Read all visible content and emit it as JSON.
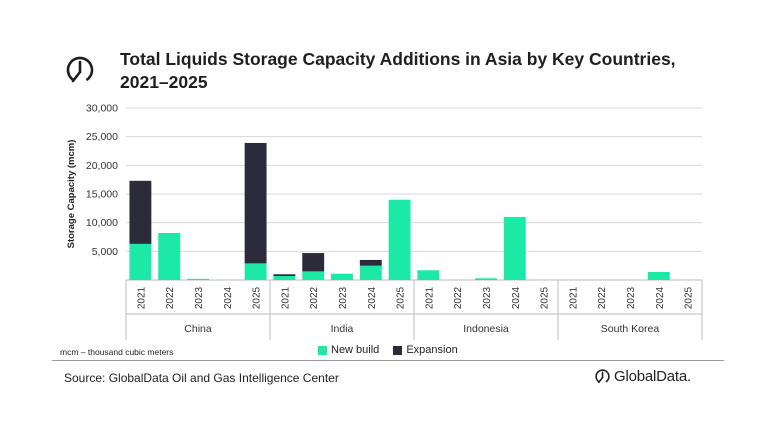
{
  "header": {
    "title": "Total Liquids Storage Capacity Additions in Asia by Key Countries, 2021–2025",
    "logo_icon": "globaldata-mark-icon"
  },
  "footer": {
    "note": "mcm – thousand cubic meters",
    "source": "Source: GlobalData Oil and Gas Intelligence Center",
    "brand": "GlobalData."
  },
  "legend": {
    "items": [
      {
        "label": "New build",
        "color": "#1de9a6"
      },
      {
        "label": "Expansion",
        "color": "#2c2b3c"
      }
    ]
  },
  "chart_data": {
    "type": "bar",
    "stacked": true,
    "ylabel": "Storage Capacity (mcm)",
    "ylim": [
      0,
      30000
    ],
    "yticks": [
      "5,000",
      "10,000",
      "15,000",
      "20,000",
      "25,000",
      "30,000"
    ],
    "ytick_values": [
      5000,
      10000,
      15000,
      20000,
      25000,
      30000
    ],
    "grid": true,
    "legend_position": "bottom",
    "groups": [
      {
        "name": "China",
        "years": [
          "2021",
          "2022",
          "2023",
          "2024",
          "2025"
        ],
        "new_build": [
          6300,
          8200,
          200,
          0,
          2900
        ],
        "expansion": [
          11000,
          0,
          0,
          0,
          21000
        ]
      },
      {
        "name": "India",
        "years": [
          "2021",
          "2022",
          "2023",
          "2024",
          "2025"
        ],
        "new_build": [
          700,
          1500,
          1100,
          2500,
          14000
        ],
        "expansion": [
          300,
          3200,
          0,
          1000,
          0
        ]
      },
      {
        "name": "Indonesia",
        "years": [
          "2021",
          "2022",
          "2023",
          "2024",
          "2025"
        ],
        "new_build": [
          1700,
          0,
          300,
          11000,
          0
        ],
        "expansion": [
          0,
          0,
          0,
          0,
          0
        ]
      },
      {
        "name": "South Korea",
        "years": [
          "2021",
          "2022",
          "2023",
          "2024",
          "2025"
        ],
        "new_build": [
          0,
          0,
          0,
          1400,
          0
        ],
        "expansion": [
          0,
          0,
          0,
          0,
          0
        ]
      }
    ],
    "series": [
      {
        "name": "New build",
        "color": "#1de9a6"
      },
      {
        "name": "Expansion",
        "color": "#2c2b3c"
      }
    ]
  }
}
